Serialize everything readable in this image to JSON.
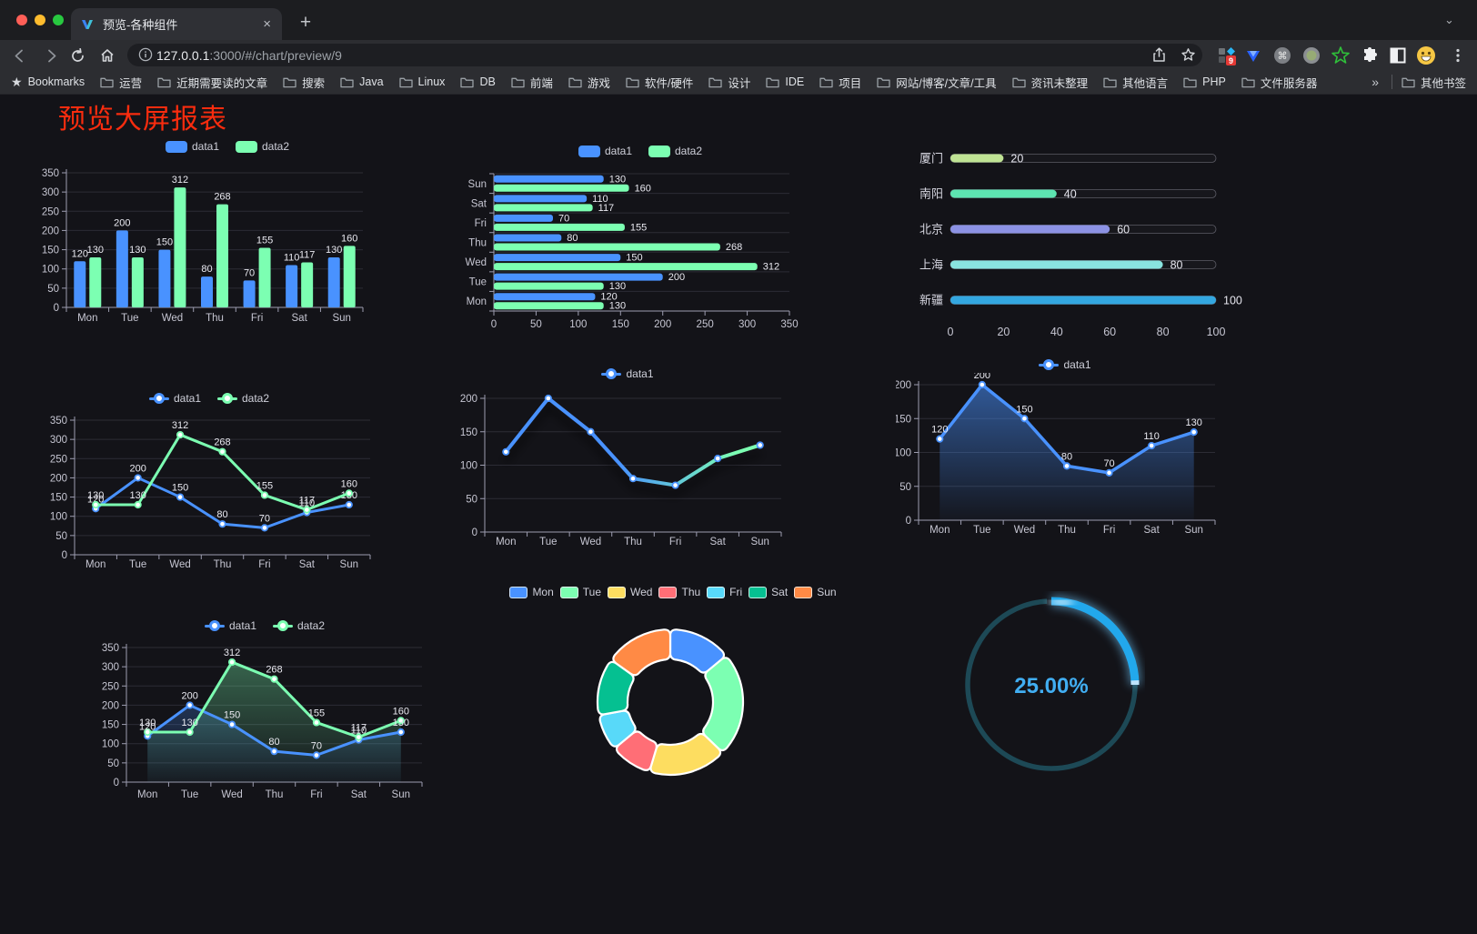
{
  "browser": {
    "tab_title": "预览-各种组件",
    "tab_close": "×",
    "new_tab": "+",
    "url_host": "127.0.0.1",
    "url_rest": ":3000/#/chart/preview/9",
    "bookmarks_label": "Bookmarks",
    "bookmarks": [
      "运营",
      "近期需要读的文章",
      "搜索",
      "Java",
      "Linux",
      "DB",
      "前端",
      "游戏",
      "软件/硬件",
      "设计",
      "IDE",
      "项目",
      "网站/博客/文章/工具",
      "资讯未整理",
      "其他语言",
      "PHP",
      "文件服务器"
    ],
    "bookmarks_overflow": "»",
    "other_bookmarks": "其他书签",
    "extension_badge": "9",
    "traffic_colors": [
      "#ff5f57",
      "#febc2e",
      "#28c840"
    ]
  },
  "page": {
    "title": "预览大屏报表",
    "title_color": "#fa2c0e",
    "background": "#131318"
  },
  "palette": {
    "blue": "#4992ff",
    "green": "#7cffb2",
    "yellow": "#fddd60",
    "red": "#ff6e76",
    "cyan": "#58d9f9",
    "teal": "#05c091",
    "orange": "#ff8a45"
  },
  "chart_data": [
    {
      "type": "bar",
      "categories": [
        "Mon",
        "Tue",
        "Wed",
        "Thu",
        "Fri",
        "Sat",
        "Sun"
      ],
      "series": [
        {
          "name": "data1",
          "color": "#4992ff",
          "values": [
            120,
            200,
            150,
            80,
            70,
            110,
            130
          ]
        },
        {
          "name": "data2",
          "color": "#7cffb2",
          "values": [
            130,
            130,
            312,
            268,
            155,
            117,
            160
          ]
        }
      ],
      "ylim": [
        0,
        350
      ],
      "ytick_step": 50,
      "show_labels": true
    },
    {
      "type": "hbar",
      "categories": [
        "Mon",
        "Tue",
        "Wed",
        "Thu",
        "Fri",
        "Sat",
        "Sun"
      ],
      "display_order_top_to_bottom": [
        "Sun",
        "Sat",
        "Fri",
        "Thu",
        "Wed",
        "Tue",
        "Mon"
      ],
      "series": [
        {
          "name": "data1",
          "color": "#4992ff",
          "values": [
            120,
            200,
            150,
            80,
            70,
            110,
            130
          ]
        },
        {
          "name": "data2",
          "color": "#7cffb2",
          "values": [
            130,
            130,
            312,
            268,
            155,
            117,
            160
          ]
        }
      ],
      "xlim": [
        0,
        350
      ],
      "xtick_step": 50,
      "show_labels": true
    },
    {
      "type": "progress",
      "max": 100,
      "xticks": [
        0,
        20,
        40,
        60,
        80,
        100
      ],
      "rows": [
        {
          "label": "厦门",
          "value": 20,
          "color": "#bfe394"
        },
        {
          "label": "南阳",
          "value": 40,
          "color": "#5de4b1"
        },
        {
          "label": "北京",
          "value": 60,
          "color": "#8c92e4"
        },
        {
          "label": "上海",
          "value": 80,
          "color": "#89e4e0"
        },
        {
          "label": "新疆",
          "value": 100,
          "color": "#33a7e0"
        }
      ]
    },
    {
      "type": "line",
      "categories": [
        "Mon",
        "Tue",
        "Wed",
        "Thu",
        "Fri",
        "Sat",
        "Sun"
      ],
      "series": [
        {
          "name": "data1",
          "color": "#4992ff",
          "values": [
            120,
            200,
            150,
            80,
            70,
            110,
            130
          ]
        },
        {
          "name": "data2",
          "color": "#7cffb2",
          "values": [
            130,
            130,
            312,
            268,
            155,
            117,
            160
          ]
        }
      ],
      "ylim": [
        0,
        350
      ],
      "ytick_step": 50,
      "show_labels": true
    },
    {
      "type": "line-gradient",
      "categories": [
        "Mon",
        "Tue",
        "Wed",
        "Thu",
        "Fri",
        "Sat",
        "Sun"
      ],
      "series": [
        {
          "name": "data1",
          "color": "#4992ff",
          "values": [
            120,
            200,
            150,
            80,
            70,
            110,
            130
          ]
        }
      ],
      "gradient": [
        "#4992ff",
        "#7cffb2"
      ],
      "ylim": [
        0,
        200
      ],
      "ytick_step": 50,
      "show_labels": false
    },
    {
      "type": "area",
      "categories": [
        "Mon",
        "Tue",
        "Wed",
        "Thu",
        "Fri",
        "Sat",
        "Sun"
      ],
      "series": [
        {
          "name": "data1",
          "color": "#4992ff",
          "values": [
            120,
            200,
            150,
            80,
            70,
            110,
            130
          ]
        }
      ],
      "ylim": [
        0,
        200
      ],
      "ytick_step": 50,
      "show_labels": true
    },
    {
      "type": "line-area",
      "categories": [
        "Mon",
        "Tue",
        "Wed",
        "Thu",
        "Fri",
        "Sat",
        "Sun"
      ],
      "series": [
        {
          "name": "data1",
          "color": "#4992ff",
          "values": [
            120,
            200,
            150,
            80,
            70,
            110,
            130
          ]
        },
        {
          "name": "data2",
          "color": "#7cffb2",
          "values": [
            130,
            130,
            312,
            268,
            155,
            117,
            160
          ]
        }
      ],
      "ylim": [
        0,
        350
      ],
      "ytick_step": 50,
      "show_labels": true
    },
    {
      "type": "pie",
      "legend": [
        "Mon",
        "Tue",
        "Wed",
        "Thu",
        "Fri",
        "Sat",
        "Sun"
      ],
      "values": [
        120,
        200,
        150,
        80,
        70,
        110,
        130
      ],
      "colors": [
        "#4992ff",
        "#7cffb2",
        "#fddd60",
        "#ff6e76",
        "#58d9f9",
        "#05c091",
        "#ff8a45"
      ]
    },
    {
      "type": "gauge",
      "value": 25,
      "label": "25.00%",
      "track_color": "#1d4956",
      "progress_color": "#22a8ec",
      "text_color": "#41aef2"
    }
  ]
}
